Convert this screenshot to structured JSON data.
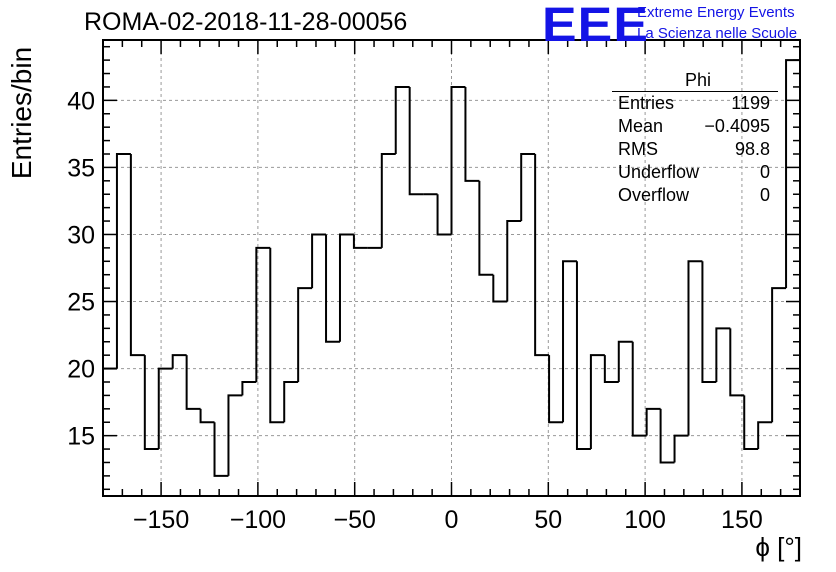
{
  "title": "ROMA-02-2018-11-28-00056",
  "logo": {
    "text": "EEE",
    "line1": "Extreme Energy Events",
    "line2": "La Scienza nelle Scuole",
    "color": "#1414e6"
  },
  "stats": {
    "name": "Phi",
    "rows": [
      {
        "label": "Entries",
        "value": "1199"
      },
      {
        "label": "Mean",
        "value": "−0.4095"
      },
      {
        "label": "RMS",
        "value": "98.8"
      },
      {
        "label": "Underflow",
        "value": "0"
      },
      {
        "label": "Overflow",
        "value": "0"
      }
    ]
  },
  "chart_data": {
    "type": "histogram",
    "title": "ROMA-02-2018-11-28-00056",
    "xlabel": "ϕ [°]",
    "ylabel": "Entries/bin",
    "xlim": [
      -180,
      180
    ],
    "ylim": [
      10.5,
      44.5
    ],
    "bin_width": 7.2,
    "xticks": [
      -150,
      -100,
      -50,
      0,
      50,
      100,
      150
    ],
    "yticks": [
      15,
      20,
      25,
      30,
      35,
      40
    ],
    "grid": true,
    "bin_edges_start": -180,
    "values": [
      20,
      36,
      21,
      14,
      20,
      21,
      17,
      16,
      12,
      18,
      19,
      29,
      16,
      19,
      26,
      30,
      22,
      30,
      29,
      29,
      36,
      41,
      33,
      33,
      30,
      41,
      34,
      27,
      25,
      31,
      36,
      21,
      16,
      28,
      14,
      21,
      19,
      22,
      15,
      17,
      13,
      15,
      28,
      19,
      23,
      18,
      14,
      16,
      26,
      43
    ]
  }
}
